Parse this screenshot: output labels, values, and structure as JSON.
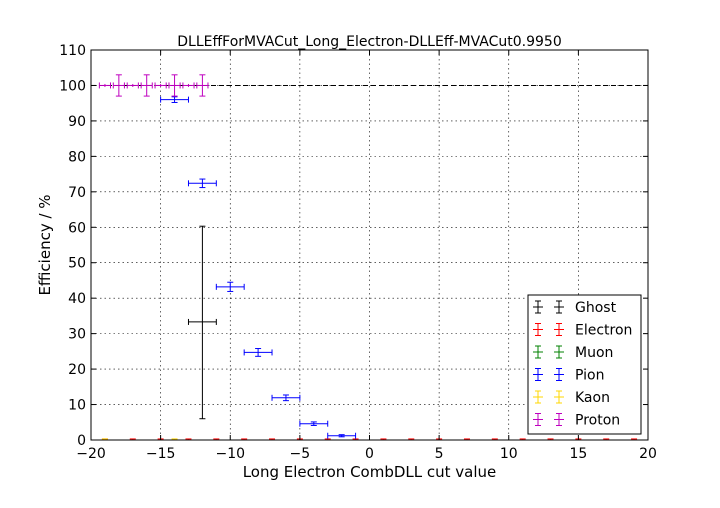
{
  "chart_data": {
    "type": "scatter",
    "title": "DLLEffForMVACut_Long_Electron-DLLEff-MVACut0.9950",
    "xlabel": "Long Electron CombDLL cut value",
    "ylabel": "Efficiency / %",
    "xlim": [
      -20,
      20
    ],
    "ylim": [
      0,
      110
    ],
    "xticks": [
      -20,
      -15,
      -10,
      -5,
      0,
      5,
      10,
      15,
      20
    ],
    "xtick_labels": [
      "−20",
      "−15",
      "−10",
      "−5",
      "0",
      "5",
      "10",
      "15",
      "20"
    ],
    "yticks": [
      0,
      10,
      20,
      30,
      40,
      50,
      60,
      70,
      80,
      90,
      100,
      110
    ],
    "ytick_labels": [
      "0",
      "10",
      "20",
      "30",
      "40",
      "50",
      "60",
      "70",
      "80",
      "90",
      "100",
      "110"
    ],
    "grid": true,
    "reference_line": {
      "y": 100,
      "style": "dashed",
      "color": "#000000"
    },
    "legend": {
      "position": "lower-right"
    },
    "series": [
      {
        "name": "Ghost",
        "color": "#000000",
        "points": [
          {
            "x": -12,
            "xerr": 1,
            "y": 33.3,
            "yerr_low": 27.3,
            "yerr_high": 27.0
          }
        ]
      },
      {
        "name": "Electron",
        "color": "#ff0000",
        "points": [
          {
            "x": -19,
            "xerr": 0,
            "y": 0,
            "yerr_low": 0,
            "yerr_high": 0.3
          },
          {
            "x": -17,
            "xerr": 0,
            "y": 0,
            "yerr_low": 0,
            "yerr_high": 0.3
          },
          {
            "x": -15,
            "xerr": 0,
            "y": 0,
            "yerr_low": 0,
            "yerr_high": 0.3
          },
          {
            "x": -13,
            "xerr": 0,
            "y": 0,
            "yerr_low": 0,
            "yerr_high": 0.3
          },
          {
            "x": -11,
            "xerr": 0,
            "y": 0,
            "yerr_low": 0,
            "yerr_high": 0.3
          },
          {
            "x": -9,
            "xerr": 0,
            "y": 0,
            "yerr_low": 0,
            "yerr_high": 0.3
          },
          {
            "x": -7,
            "xerr": 0,
            "y": 0,
            "yerr_low": 0,
            "yerr_high": 0.3
          },
          {
            "x": -5,
            "xerr": 0,
            "y": 0,
            "yerr_low": 0,
            "yerr_high": 0.3
          },
          {
            "x": -3,
            "xerr": 0,
            "y": 0,
            "yerr_low": 0,
            "yerr_high": 0.3
          },
          {
            "x": -1,
            "xerr": 0,
            "y": 0,
            "yerr_low": 0,
            "yerr_high": 0.3
          },
          {
            "x": 1,
            "xerr": 0,
            "y": 0,
            "yerr_low": 0,
            "yerr_high": 0.3
          },
          {
            "x": 3,
            "xerr": 0,
            "y": 0,
            "yerr_low": 0,
            "yerr_high": 0.3
          },
          {
            "x": 5,
            "xerr": 0,
            "y": 0,
            "yerr_low": 0,
            "yerr_high": 0.3
          },
          {
            "x": 7,
            "xerr": 0,
            "y": 0,
            "yerr_low": 0,
            "yerr_high": 0.3
          },
          {
            "x": 9,
            "xerr": 0,
            "y": 0,
            "yerr_low": 0,
            "yerr_high": 0.3
          },
          {
            "x": 11,
            "xerr": 0,
            "y": 0,
            "yerr_low": 0,
            "yerr_high": 0.3
          },
          {
            "x": 13,
            "xerr": 0,
            "y": 0,
            "yerr_low": 0,
            "yerr_high": 0.3
          },
          {
            "x": 15,
            "xerr": 0,
            "y": 0,
            "yerr_low": 0,
            "yerr_high": 0.3
          },
          {
            "x": 17,
            "xerr": 0,
            "y": 0,
            "yerr_low": 0,
            "yerr_high": 0.3
          },
          {
            "x": 19,
            "xerr": 0,
            "y": 0,
            "yerr_low": 0,
            "yerr_high": 0.3
          }
        ]
      },
      {
        "name": "Muon",
        "color": "#008000",
        "points": []
      },
      {
        "name": "Pion",
        "color": "#0000ff",
        "points": [
          {
            "x": -14,
            "xerr": 1,
            "y": 96.0,
            "yerr_low": 0.8,
            "yerr_high": 0.8
          },
          {
            "x": -12,
            "xerr": 1,
            "y": 72.4,
            "yerr_low": 1.2,
            "yerr_high": 1.2
          },
          {
            "x": -10,
            "xerr": 1,
            "y": 43.2,
            "yerr_low": 1.3,
            "yerr_high": 1.3
          },
          {
            "x": -8,
            "xerr": 1,
            "y": 24.7,
            "yerr_low": 1.1,
            "yerr_high": 1.1
          },
          {
            "x": -6,
            "xerr": 1,
            "y": 11.9,
            "yerr_low": 0.8,
            "yerr_high": 0.8
          },
          {
            "x": -4,
            "xerr": 1,
            "y": 4.6,
            "yerr_low": 0.5,
            "yerr_high": 0.5
          },
          {
            "x": -2,
            "xerr": 1,
            "y": 1.2,
            "yerr_low": 0.3,
            "yerr_high": 0.3
          }
        ]
      },
      {
        "name": "Kaon",
        "color": "#ffd700",
        "points": [
          {
            "x": -19,
            "xerr": 0,
            "y": 0,
            "yerr_low": 0,
            "yerr_high": 0.3
          },
          {
            "x": -14,
            "xerr": 0,
            "y": 0,
            "yerr_low": 0,
            "yerr_high": 0.3
          }
        ]
      },
      {
        "name": "Proton",
        "color": "#bf00bf",
        "points": [
          {
            "x": -19,
            "xerr": 0.4,
            "y": 100,
            "yerr_low": 0,
            "yerr_high": 0
          },
          {
            "x": -18,
            "xerr": 0.4,
            "y": 100,
            "yerr_low": 3,
            "yerr_high": 3
          },
          {
            "x": -17,
            "xerr": 0.4,
            "y": 100,
            "yerr_low": 0,
            "yerr_high": 0
          },
          {
            "x": -16,
            "xerr": 0.4,
            "y": 100,
            "yerr_low": 3,
            "yerr_high": 3
          },
          {
            "x": -15,
            "xerr": 0.4,
            "y": 100,
            "yerr_low": 0,
            "yerr_high": 0
          },
          {
            "x": -14,
            "xerr": 0.4,
            "y": 100,
            "yerr_low": 3,
            "yerr_high": 3
          },
          {
            "x": -13,
            "xerr": 0.4,
            "y": 100,
            "yerr_low": 0,
            "yerr_high": 0
          },
          {
            "x": -12,
            "xerr": 0.4,
            "y": 100,
            "yerr_low": 3,
            "yerr_high": 3
          }
        ]
      }
    ]
  }
}
